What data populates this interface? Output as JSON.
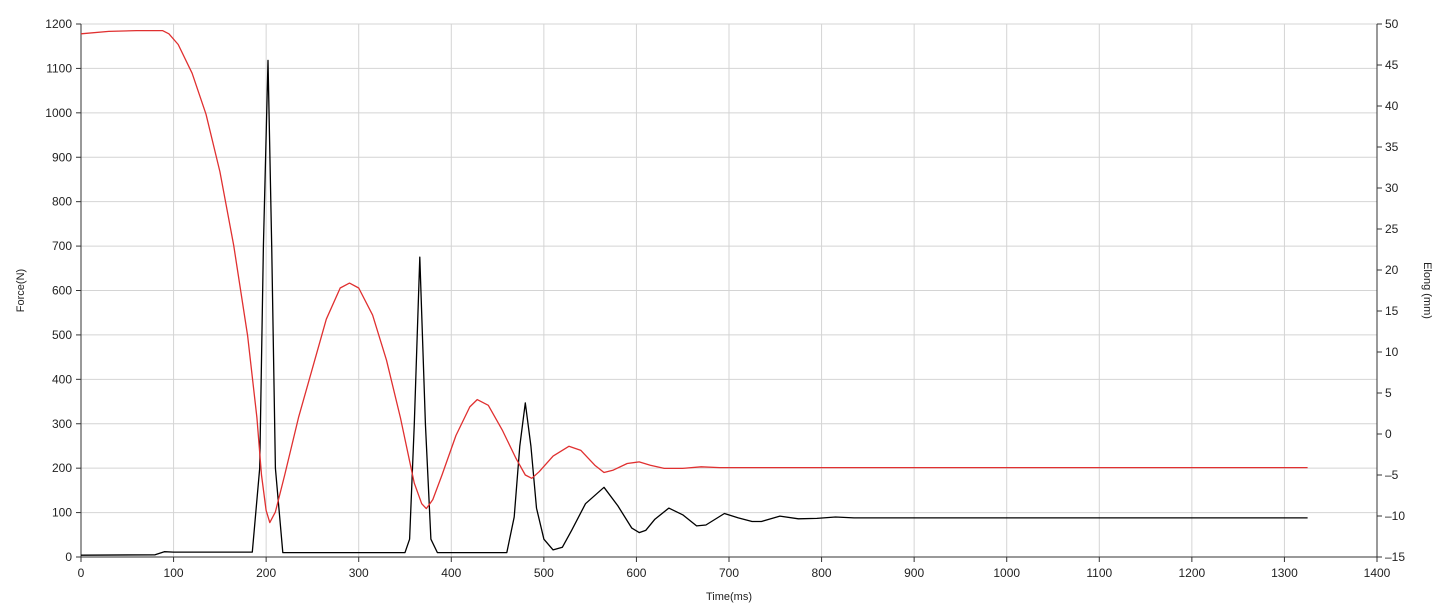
{
  "chart_data": {
    "type": "line",
    "title": "",
    "xlabel": "Time(ms)",
    "ylabel_left": "Force(N)",
    "ylabel_right": "Elong (mm)",
    "xlim": [
      0,
      1400
    ],
    "ylim_left": [
      0,
      1200
    ],
    "ylim_right": [
      -15,
      50
    ],
    "x_ticks": [
      "0",
      "100",
      "200",
      "300",
      "400",
      "500",
      "600",
      "700",
      "800",
      "900",
      "1000",
      "1100",
      "1200",
      "1300",
      "1400"
    ],
    "y_ticks_left": [
      "0",
      "100",
      "200",
      "300",
      "400",
      "500",
      "600",
      "700",
      "800",
      "900",
      "1000",
      "1100",
      "1200"
    ],
    "y_ticks_right": [
      "-15",
      "-10",
      "-5",
      "0",
      "5",
      "10",
      "15",
      "20",
      "25",
      "30",
      "35",
      "40",
      "45",
      "50"
    ],
    "grid": true,
    "series": [
      {
        "axis": "left",
        "color": "#000000",
        "points": [
          [
            0,
            4
          ],
          [
            80,
            5
          ],
          [
            90,
            12
          ],
          [
            100,
            11
          ],
          [
            185,
            11
          ],
          [
            193,
            200
          ],
          [
            197,
            700
          ],
          [
            202,
            1118
          ],
          [
            206,
            700
          ],
          [
            210,
            200
          ],
          [
            218,
            10
          ],
          [
            300,
            10
          ],
          [
            350,
            10
          ],
          [
            355,
            40
          ],
          [
            360,
            300
          ],
          [
            366,
            675
          ],
          [
            372,
            300
          ],
          [
            378,
            40
          ],
          [
            385,
            10
          ],
          [
            460,
            10
          ],
          [
            468,
            90
          ],
          [
            474,
            250
          ],
          [
            480,
            347
          ],
          [
            486,
            250
          ],
          [
            492,
            110
          ],
          [
            500,
            40
          ],
          [
            510,
            16
          ],
          [
            520,
            22
          ],
          [
            530,
            60
          ],
          [
            545,
            120
          ],
          [
            565,
            157
          ],
          [
            580,
            115
          ],
          [
            595,
            65
          ],
          [
            603,
            55
          ],
          [
            610,
            60
          ],
          [
            620,
            85
          ],
          [
            635,
            110
          ],
          [
            650,
            95
          ],
          [
            665,
            70
          ],
          [
            675,
            72
          ],
          [
            695,
            98
          ],
          [
            710,
            88
          ],
          [
            725,
            80
          ],
          [
            735,
            80
          ],
          [
            755,
            92
          ],
          [
            775,
            86
          ],
          [
            795,
            87
          ],
          [
            815,
            90
          ],
          [
            835,
            88
          ],
          [
            900,
            88
          ],
          [
            1000,
            88
          ],
          [
            1100,
            88
          ],
          [
            1200,
            88
          ],
          [
            1325,
            88
          ]
        ]
      },
      {
        "axis": "right",
        "color": "#e03030",
        "points": [
          [
            0,
            48.8
          ],
          [
            30,
            49.1
          ],
          [
            60,
            49.2
          ],
          [
            88,
            49.2
          ],
          [
            95,
            48.8
          ],
          [
            105,
            47.5
          ],
          [
            120,
            44
          ],
          [
            135,
            39
          ],
          [
            150,
            32
          ],
          [
            165,
            23
          ],
          [
            180,
            12
          ],
          [
            190,
            2
          ],
          [
            195,
            -5
          ],
          [
            200,
            -9.3
          ],
          [
            204,
            -10.8
          ],
          [
            210,
            -9.5
          ],
          [
            220,
            -5
          ],
          [
            235,
            2
          ],
          [
            250,
            8
          ],
          [
            265,
            14
          ],
          [
            280,
            17.8
          ],
          [
            290,
            18.4
          ],
          [
            300,
            17.8
          ],
          [
            315,
            14.5
          ],
          [
            330,
            9
          ],
          [
            345,
            2
          ],
          [
            360,
            -6
          ],
          [
            368,
            -8.5
          ],
          [
            373,
            -9.1
          ],
          [
            380,
            -8
          ],
          [
            390,
            -5
          ],
          [
            405,
            -0.2
          ],
          [
            420,
            3.3
          ],
          [
            428,
            4.2
          ],
          [
            440,
            3.5
          ],
          [
            455,
            0.5
          ],
          [
            470,
            -3
          ],
          [
            480,
            -5
          ],
          [
            487,
            -5.4
          ],
          [
            495,
            -4.6
          ],
          [
            510,
            -2.7
          ],
          [
            527,
            -1.5
          ],
          [
            540,
            -2
          ],
          [
            555,
            -3.8
          ],
          [
            565,
            -4.7
          ],
          [
            575,
            -4.4
          ],
          [
            590,
            -3.6
          ],
          [
            603,
            -3.4
          ],
          [
            615,
            -3.8
          ],
          [
            630,
            -4.2
          ],
          [
            650,
            -4.2
          ],
          [
            670,
            -4
          ],
          [
            690,
            -4.1
          ],
          [
            710,
            -4.1
          ],
          [
            750,
            -4.1
          ],
          [
            800,
            -4.1
          ],
          [
            900,
            -4.1
          ],
          [
            1000,
            -4.1
          ],
          [
            1100,
            -4.1
          ],
          [
            1200,
            -4.1
          ],
          [
            1325,
            -4.1
          ]
        ]
      }
    ]
  }
}
